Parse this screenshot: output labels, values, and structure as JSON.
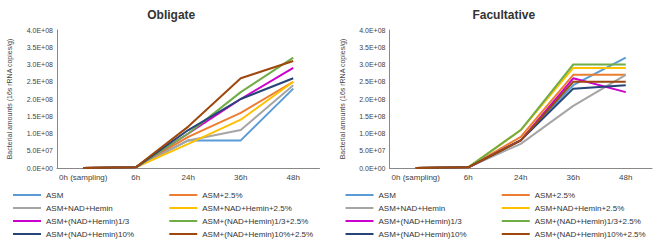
{
  "chart_data": [
    {
      "type": "line",
      "title": "Obligate",
      "y_label": "Bacterial amounts (16s rRNA copies/g)",
      "categories": [
        "0h (sampling)",
        "6h",
        "24h",
        "36h",
        "48h"
      ],
      "ylim": [
        0,
        400000000
      ],
      "yticks": [
        {
          "value": 0,
          "label": "0.0E+00"
        },
        {
          "value": 50000000,
          "label": "5.0E+07"
        },
        {
          "value": 100000000,
          "label": "1.0E+08"
        },
        {
          "value": 150000000,
          "label": "1.5E+08"
        },
        {
          "value": 200000000,
          "label": "2.0E+08"
        },
        {
          "value": 250000000,
          "label": "2.5E+08"
        },
        {
          "value": 300000000,
          "label": "3.0E+08"
        },
        {
          "value": 350000000,
          "label": "3.5E+08"
        },
        {
          "value": 400000000,
          "label": "4.0E+08"
        }
      ],
      "grid": false,
      "legend": "bottom",
      "series": [
        {
          "name": "ASM",
          "color": "#5b9bd5",
          "values": [
            0,
            2000000,
            80000000,
            80000000,
            230000000
          ]
        },
        {
          "name": "ASM+2.5%",
          "color": "#ed7d31",
          "values": [
            0,
            2000000,
            90000000,
            160000000,
            250000000
          ]
        },
        {
          "name": "ASM+NAD+Hemin",
          "color": "#a5a5a5",
          "values": [
            0,
            2000000,
            80000000,
            110000000,
            240000000
          ]
        },
        {
          "name": "ASM+NAD+Hemin+2.5%",
          "color": "#ffc000",
          "values": [
            0,
            2000000,
            70000000,
            140000000,
            250000000
          ]
        },
        {
          "name": "ASM+(NAD+Hemin)1/3",
          "color": "#cc00cc",
          "values": [
            0,
            2000000,
            100000000,
            200000000,
            290000000
          ]
        },
        {
          "name": "ASM+(NAD+Hemin)1/3+2.5%",
          "color": "#70ad47",
          "values": [
            0,
            2000000,
            100000000,
            220000000,
            320000000
          ]
        },
        {
          "name": "ASM+(NAD+Hemin)10%",
          "color": "#264478",
          "values": [
            0,
            2000000,
            110000000,
            200000000,
            260000000
          ]
        },
        {
          "name": "ASM+(NAD+Hemin)10%+2.5%",
          "color": "#9e480e",
          "values": [
            0,
            2000000,
            120000000,
            260000000,
            310000000
          ]
        }
      ]
    },
    {
      "type": "line",
      "title": "Facultative",
      "y_label": "Bacterial amounts (16s rRNA copies/g)",
      "categories": [
        "0h (sampling)",
        "6h",
        "24h",
        "36h",
        "48h"
      ],
      "ylim": [
        0,
        400000000
      ],
      "yticks": [
        {
          "value": 0,
          "label": "0.0E+00"
        },
        {
          "value": 50000000,
          "label": "5.0E+07"
        },
        {
          "value": 100000000,
          "label": "1.0E+08"
        },
        {
          "value": 150000000,
          "label": "1.5E+08"
        },
        {
          "value": 200000000,
          "label": "2.0E+08"
        },
        {
          "value": 250000000,
          "label": "2.5E+08"
        },
        {
          "value": 300000000,
          "label": "3.0E+08"
        },
        {
          "value": 350000000,
          "label": "3.5E+08"
        },
        {
          "value": 400000000,
          "label": "4.0E+08"
        }
      ],
      "grid": false,
      "legend": "bottom",
      "series": [
        {
          "name": "ASM",
          "color": "#5b9bd5",
          "values": [
            0,
            2000000,
            80000000,
            240000000,
            320000000
          ]
        },
        {
          "name": "ASM+2.5%",
          "color": "#ed7d31",
          "values": [
            0,
            2000000,
            90000000,
            270000000,
            270000000
          ]
        },
        {
          "name": "ASM+NAD+Hemin",
          "color": "#a5a5a5",
          "values": [
            0,
            2000000,
            70000000,
            180000000,
            270000000
          ]
        },
        {
          "name": "ASM+NAD+Hemin+2.5%",
          "color": "#ffc000",
          "values": [
            0,
            2000000,
            110000000,
            290000000,
            290000000
          ]
        },
        {
          "name": "ASM+(NAD+Hemin)1/3",
          "color": "#cc00cc",
          "values": [
            0,
            2000000,
            80000000,
            260000000,
            220000000
          ]
        },
        {
          "name": "ASM+(NAD+Hemin)1/3+2.5%",
          "color": "#70ad47",
          "values": [
            0,
            2000000,
            110000000,
            300000000,
            300000000
          ]
        },
        {
          "name": "ASM+(NAD+Hemin)10%",
          "color": "#264478",
          "values": [
            0,
            2000000,
            80000000,
            230000000,
            240000000
          ]
        },
        {
          "name": "ASM+(NAD+Hemin)10%+2.5%",
          "color": "#9e480e",
          "values": [
            0,
            2000000,
            80000000,
            250000000,
            250000000
          ]
        }
      ]
    }
  ]
}
